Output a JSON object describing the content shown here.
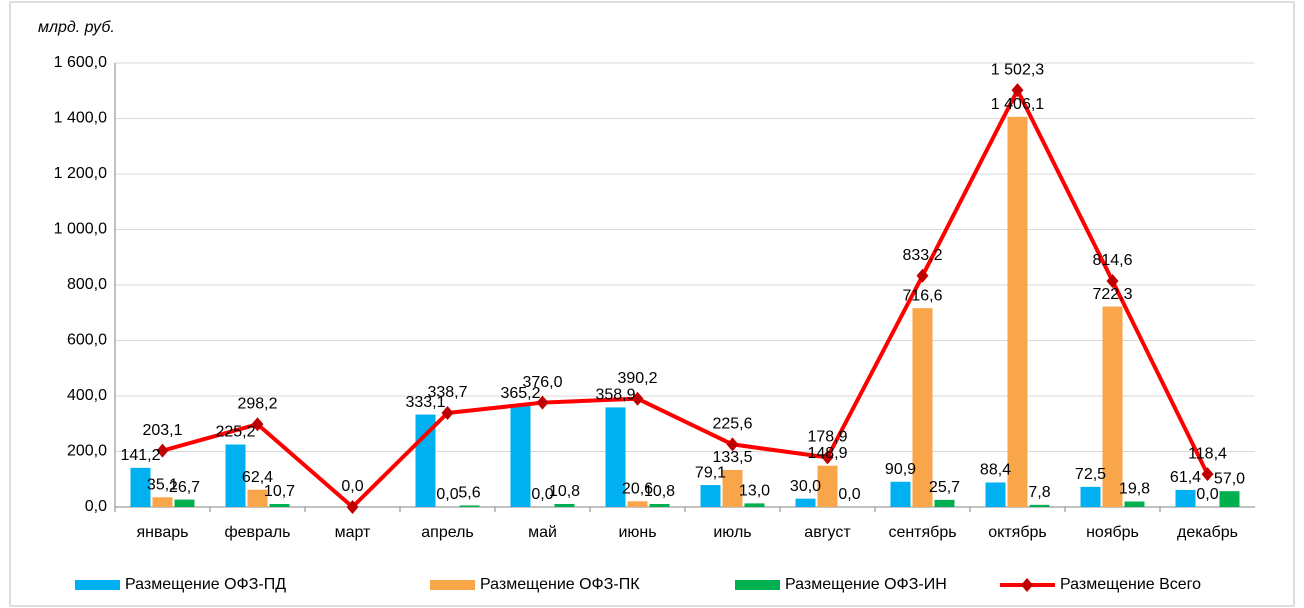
{
  "chart_data": {
    "type": "bar-line",
    "y_label": "млрд. руб.",
    "categories": [
      "январь",
      "февраль",
      "март",
      "апрель",
      "май",
      "июнь",
      "июль",
      "август",
      "сентябрь",
      "октябрь",
      "ноябрь",
      "декабрь"
    ],
    "ylim": [
      0,
      1600
    ],
    "yticks": [
      {
        "value": 0,
        "label": "0,0"
      },
      {
        "value": 200,
        "label": "200,0"
      },
      {
        "value": 400,
        "label": "400,0"
      },
      {
        "value": 600,
        "label": "600,0"
      },
      {
        "value": 800,
        "label": "800,0"
      },
      {
        "value": 1000,
        "label": "1 000,0"
      },
      {
        "value": 1200,
        "label": "1 200,0"
      },
      {
        "value": 1400,
        "label": "1 400,0"
      },
      {
        "value": 1600,
        "label": "1 600,0"
      }
    ],
    "grid": true,
    "legend": "bottom",
    "series": [
      {
        "name": "Размещение ОФЗ-ПД",
        "kind": "bar",
        "color": "#00b0f0",
        "values": [
          141.2,
          225.2,
          null,
          333.1,
          365.2,
          358.9,
          79.1,
          30.0,
          90.9,
          88.4,
          72.5,
          61.4
        ],
        "value_labels": [
          "141,2",
          "225,2",
          null,
          "333,1",
          "365,2",
          "358,9",
          "79,1",
          "30,0",
          "90,9",
          "88,4",
          "72,5",
          "61,4"
        ]
      },
      {
        "name": "Размещение ОФЗ-ПК",
        "kind": "bar",
        "color": "#f9a64a",
        "values": [
          35.1,
          62.4,
          null,
          0.0,
          0.0,
          20.6,
          133.5,
          148.9,
          716.6,
          1406.1,
          722.3,
          0.0
        ],
        "value_labels": [
          "35,1",
          "62,4",
          null,
          "0,0",
          "0,0",
          "20,6",
          "133,5",
          "148,9",
          "716,6",
          "1 406,1",
          "722,3",
          "0,0"
        ]
      },
      {
        "name": "Размещение ОФЗ-ИН",
        "kind": "bar",
        "color": "#00b050",
        "values": [
          26.7,
          10.7,
          null,
          5.6,
          10.8,
          10.8,
          13.0,
          0.0,
          25.7,
          7.8,
          19.8,
          57.0
        ],
        "value_labels": [
          "26,7",
          "10,7",
          null,
          "5,6",
          "10,8",
          "10,8",
          "13,0",
          "0,0",
          "25,7",
          "7,8",
          "19,8",
          "57,0"
        ]
      },
      {
        "name": "Размещение Всего",
        "kind": "line",
        "color": "#ff0000",
        "marker_color": "#c00000",
        "values": [
          203.1,
          298.2,
          0.0,
          338.7,
          376.0,
          390.2,
          225.6,
          178.9,
          833.2,
          1502.3,
          814.6,
          118.4
        ],
        "value_labels": [
          "203,1",
          "298,2",
          "0,0",
          "338,7",
          "376,0",
          "390,2",
          "225,6",
          "178,9",
          "833,2",
          "1 502,3",
          "814,6",
          "118,4"
        ]
      }
    ]
  }
}
